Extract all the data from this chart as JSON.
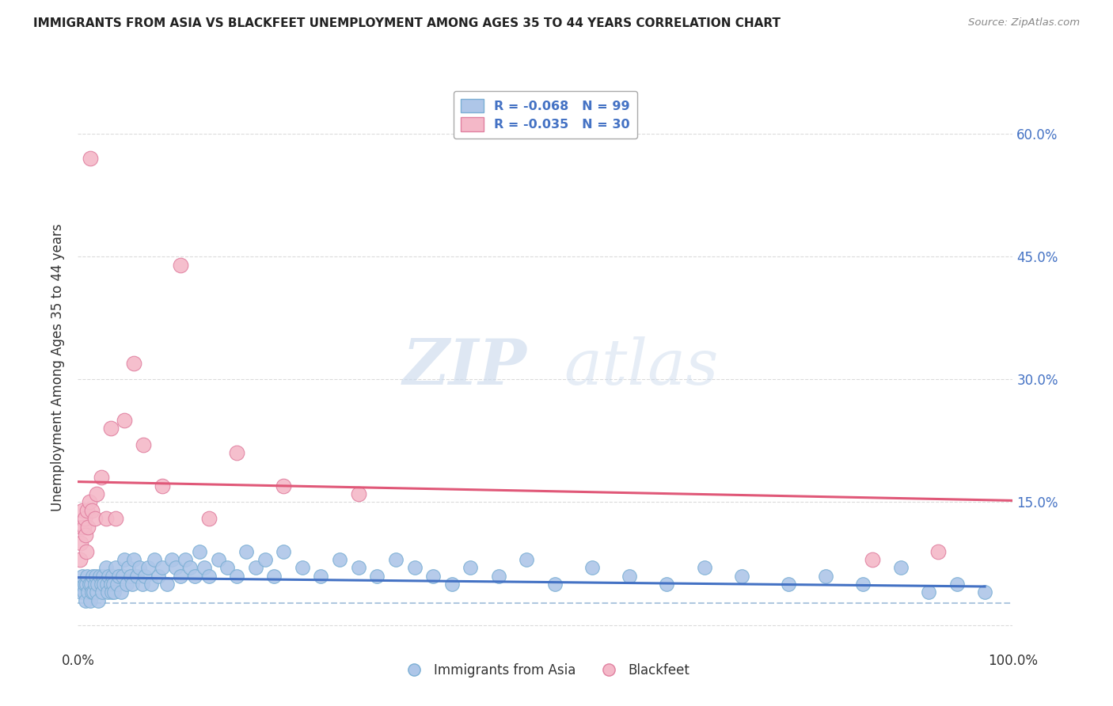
{
  "title": "IMMIGRANTS FROM ASIA VS BLACKFEET UNEMPLOYMENT AMONG AGES 35 TO 44 YEARS CORRELATION CHART",
  "source": "Source: ZipAtlas.com",
  "ylabel": "Unemployment Among Ages 35 to 44 years",
  "yticks": [
    0.0,
    0.15,
    0.3,
    0.45,
    0.6
  ],
  "ytick_labels_right": [
    "60.0%",
    "45.0%",
    "30.0%",
    "15.0%",
    ""
  ],
  "xmin": 0.0,
  "xmax": 1.0,
  "ymin": -0.03,
  "ymax": 0.66,
  "series1_color": "#aec6e8",
  "series1_edge": "#7bafd4",
  "series2_color": "#f4b8c8",
  "series2_edge": "#e080a0",
  "line1_color": "#4472c4",
  "line2_color": "#e05878",
  "dashed_line_color": "#b0c8e0",
  "grid_color": "#cccccc",
  "background_color": "#ffffff",
  "watermark_zip": "ZIP",
  "watermark_atlas": "atlas",
  "blue_scatter_x": [
    0.002,
    0.003,
    0.004,
    0.005,
    0.006,
    0.007,
    0.008,
    0.009,
    0.01,
    0.011,
    0.012,
    0.013,
    0.014,
    0.015,
    0.016,
    0.017,
    0.018,
    0.019,
    0.02,
    0.021,
    0.022,
    0.023,
    0.025,
    0.026,
    0.027,
    0.028,
    0.03,
    0.031,
    0.032,
    0.033,
    0.035,
    0.036,
    0.037,
    0.038,
    0.039,
    0.04,
    0.042,
    0.044,
    0.046,
    0.048,
    0.05,
    0.052,
    0.054,
    0.056,
    0.058,
    0.06,
    0.063,
    0.066,
    0.069,
    0.072,
    0.075,
    0.078,
    0.082,
    0.086,
    0.09,
    0.095,
    0.1,
    0.105,
    0.11,
    0.115,
    0.12,
    0.125,
    0.13,
    0.135,
    0.14,
    0.15,
    0.16,
    0.17,
    0.18,
    0.19,
    0.2,
    0.21,
    0.22,
    0.24,
    0.26,
    0.28,
    0.3,
    0.32,
    0.34,
    0.36,
    0.38,
    0.4,
    0.42,
    0.45,
    0.48,
    0.51,
    0.55,
    0.59,
    0.63,
    0.67,
    0.71,
    0.76,
    0.8,
    0.84,
    0.88,
    0.91,
    0.94,
    0.97
  ],
  "blue_scatter_y": [
    0.05,
    0.04,
    0.05,
    0.06,
    0.04,
    0.05,
    0.03,
    0.05,
    0.06,
    0.04,
    0.05,
    0.03,
    0.05,
    0.04,
    0.06,
    0.04,
    0.05,
    0.06,
    0.04,
    0.05,
    0.03,
    0.06,
    0.05,
    0.04,
    0.06,
    0.05,
    0.07,
    0.05,
    0.04,
    0.06,
    0.05,
    0.04,
    0.06,
    0.05,
    0.04,
    0.07,
    0.05,
    0.06,
    0.04,
    0.06,
    0.08,
    0.05,
    0.07,
    0.06,
    0.05,
    0.08,
    0.06,
    0.07,
    0.05,
    0.06,
    0.07,
    0.05,
    0.08,
    0.06,
    0.07,
    0.05,
    0.08,
    0.07,
    0.06,
    0.08,
    0.07,
    0.06,
    0.09,
    0.07,
    0.06,
    0.08,
    0.07,
    0.06,
    0.09,
    0.07,
    0.08,
    0.06,
    0.09,
    0.07,
    0.06,
    0.08,
    0.07,
    0.06,
    0.08,
    0.07,
    0.06,
    0.05,
    0.07,
    0.06,
    0.08,
    0.05,
    0.07,
    0.06,
    0.05,
    0.07,
    0.06,
    0.05,
    0.06,
    0.05,
    0.07,
    0.04,
    0.05,
    0.04
  ],
  "pink_scatter_x": [
    0.002,
    0.003,
    0.004,
    0.005,
    0.006,
    0.007,
    0.008,
    0.009,
    0.01,
    0.011,
    0.012,
    0.013,
    0.015,
    0.018,
    0.02,
    0.025,
    0.03,
    0.035,
    0.04,
    0.05,
    0.06,
    0.07,
    0.09,
    0.11,
    0.14,
    0.17,
    0.22,
    0.3,
    0.85,
    0.92
  ],
  "pink_scatter_y": [
    0.08,
    0.1,
    0.12,
    0.14,
    0.12,
    0.13,
    0.11,
    0.09,
    0.14,
    0.12,
    0.15,
    0.57,
    0.14,
    0.13,
    0.16,
    0.18,
    0.13,
    0.24,
    0.13,
    0.25,
    0.32,
    0.22,
    0.17,
    0.44,
    0.13,
    0.21,
    0.17,
    0.16,
    0.08,
    0.09
  ],
  "pink_line_x0": 0.0,
  "pink_line_x1": 1.0,
  "pink_line_y0": 0.175,
  "pink_line_y1": 0.152,
  "blue_line_x0": 0.0,
  "blue_line_x1": 0.97,
  "blue_line_y0": 0.058,
  "blue_line_y1": 0.047,
  "dashed_line_y": 0.027
}
